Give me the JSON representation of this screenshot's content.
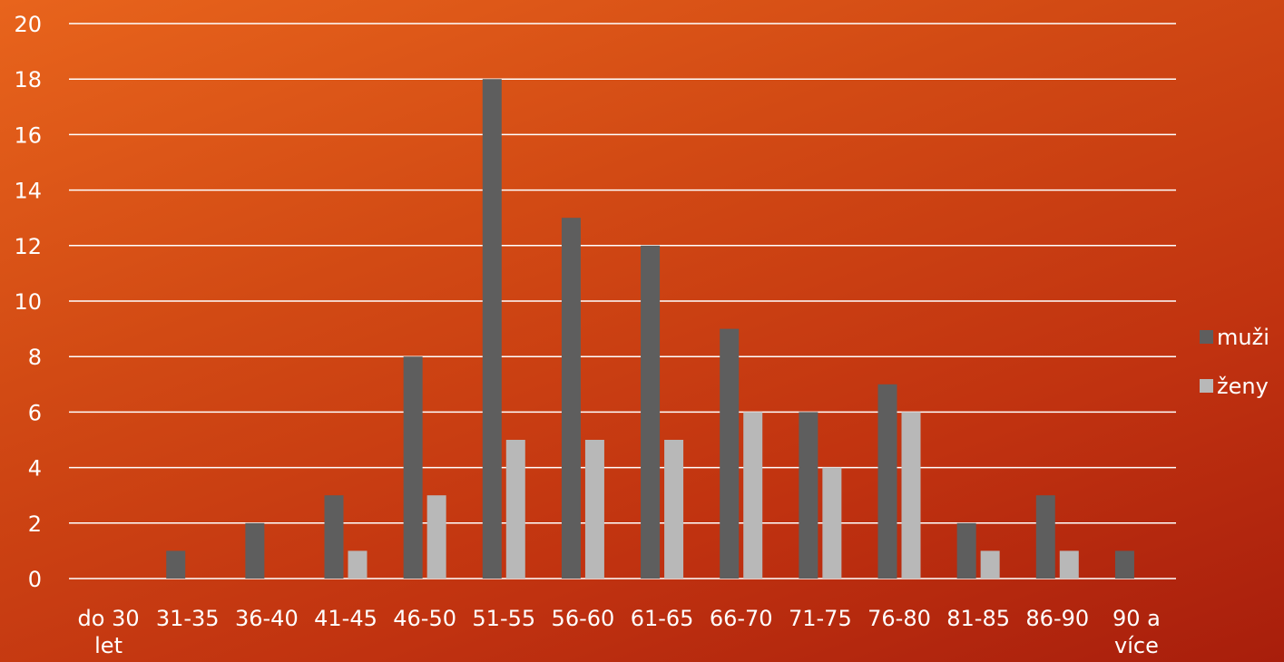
{
  "chart_data": {
    "type": "bar",
    "categories": [
      [
        "do 30",
        "let"
      ],
      [
        "31-35"
      ],
      [
        "36-40"
      ],
      [
        "41-45"
      ],
      [
        "46-50"
      ],
      [
        "51-55"
      ],
      [
        "56-60"
      ],
      [
        "61-65"
      ],
      [
        "66-70"
      ],
      [
        "71-75"
      ],
      [
        "76-80"
      ],
      [
        "81-85"
      ],
      [
        "86-90"
      ],
      [
        "90 a",
        "více"
      ]
    ],
    "series": [
      {
        "name": "muži",
        "color": "#5e5e5e",
        "values": [
          0,
          1,
          2,
          3,
          8,
          18,
          13,
          12,
          9,
          6,
          7,
          2,
          3,
          1
        ]
      },
      {
        "name": "ženy",
        "color": "#b8b8b8",
        "values": [
          0,
          0,
          0,
          1,
          3,
          5,
          5,
          5,
          6,
          4,
          6,
          1,
          1,
          0
        ]
      }
    ],
    "ylim": [
      0,
      20
    ],
    "yticks": [
      0,
      2,
      4,
      6,
      8,
      10,
      12,
      14,
      16,
      18,
      20
    ],
    "grid": true,
    "legend_position": "right"
  }
}
